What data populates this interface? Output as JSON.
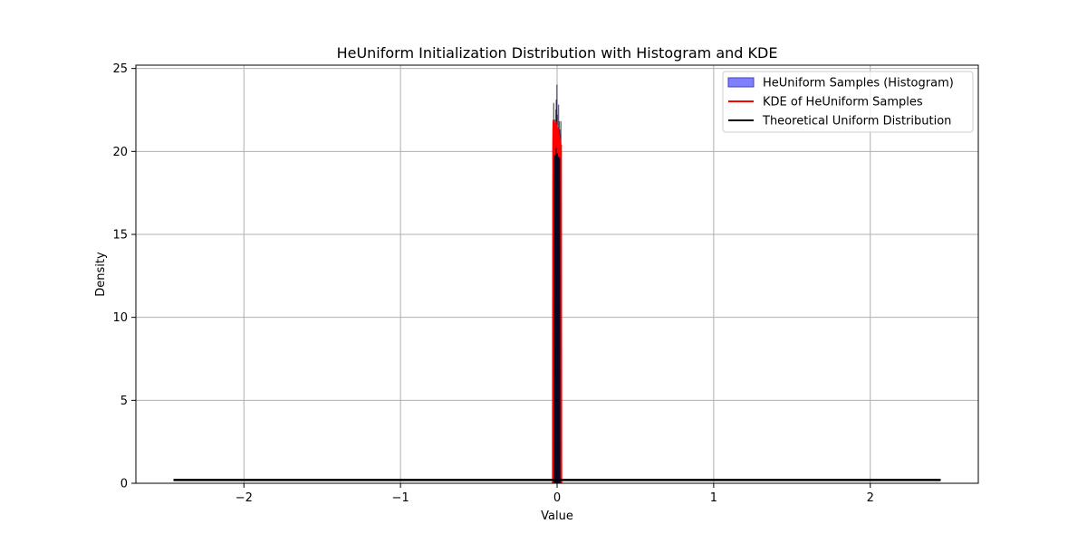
{
  "chart_data": {
    "type": "histogram+line",
    "title": "HeUniform Initialization Distribution with Histogram and KDE",
    "xlabel": "Value",
    "ylabel": "Density",
    "xlim": [
      -2.69,
      2.69
    ],
    "ylim": [
      0,
      25.2
    ],
    "x_ticks": [
      -2,
      -1,
      0,
      1,
      2
    ],
    "x_tick_labels": [
      "−2",
      "−1",
      "0",
      "1",
      "2"
    ],
    "y_ticks": [
      0,
      5,
      10,
      15,
      20,
      25
    ],
    "y_tick_labels": [
      "0",
      "5",
      "10",
      "15",
      "20",
      "25"
    ],
    "grid": true,
    "legend_position": "top-right",
    "legend": [
      {
        "label": "HeUniform Samples (Histogram)",
        "kind": "patch",
        "color": "#8080ff",
        "edge": "#4040c0"
      },
      {
        "label": "KDE of HeUniform Samples",
        "kind": "line",
        "color": "#ff0000"
      },
      {
        "label": "Theoretical Uniform Distribution",
        "kind": "line",
        "color": "#000000"
      }
    ],
    "histogram": {
      "range": [
        -0.025,
        0.025
      ],
      "values": [
        21.6,
        22.9,
        20.4,
        21.2,
        21.9,
        20.2,
        20.6,
        21.7,
        22.5,
        23.1,
        21.0,
        24.0,
        22.2,
        21.0,
        19.8,
        21.4,
        22.8,
        20.7,
        21.8,
        20.0,
        21.3,
        21.0,
        19.5,
        21.8
      ],
      "fill": "#0000ff",
      "edge": "#000000"
    },
    "kde": {
      "x": [
        -0.027,
        -0.025,
        -0.023,
        -0.021,
        -0.019,
        -0.017,
        -0.015,
        -0.013,
        -0.011,
        -0.009,
        -0.007,
        -0.005,
        -0.003,
        -0.001,
        0.001,
        0.003,
        0.005,
        0.007,
        0.009,
        0.011,
        0.013,
        0.015,
        0.017,
        0.019,
        0.021,
        0.023,
        0.025,
        0.027
      ],
      "y": [
        0.0,
        20.5,
        21.9,
        20.3,
        21.5,
        19.8,
        21.7,
        20.9,
        21.3,
        20.2,
        21.8,
        20.6,
        21.6,
        20.4,
        21.2,
        19.9,
        21.4,
        20.3,
        21.1,
        19.7,
        21.0,
        20.1,
        20.8,
        19.6,
        20.5,
        19.9,
        20.4,
        0.0
      ],
      "color": "#ff0000"
    },
    "uniform": {
      "x_range": [
        -2.45,
        2.45
      ],
      "density": 0.2,
      "color": "#000000"
    }
  }
}
